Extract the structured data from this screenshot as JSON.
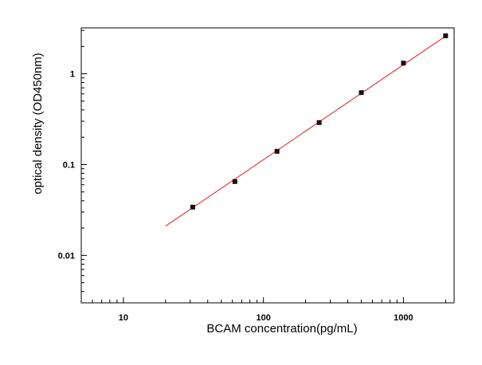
{
  "chart_data": {
    "type": "scatter",
    "title": "",
    "xlabel": "BCAM  concentration(pg/mL)",
    "ylabel": "optical density (OD450nm)",
    "x_scale": "log",
    "y_scale": "log",
    "xlim": [
      5,
      2300
    ],
    "ylim": [
      0.003,
      3.2
    ],
    "x_ticks": [
      {
        "value": 10,
        "label": "10"
      },
      {
        "value": 100,
        "label": "100"
      },
      {
        "value": 1000,
        "label": "1000"
      }
    ],
    "y_ticks": [
      {
        "value": 0.01,
        "label": "0.01"
      },
      {
        "value": 0.1,
        "label": "0.1"
      },
      {
        "value": 1,
        "label": "1"
      }
    ],
    "grid": false,
    "legend": "none",
    "series": [
      {
        "type": "scatter",
        "color": "#1a0a0a",
        "x": [
          31.25,
          62.5,
          125,
          250,
          500,
          1000,
          2000
        ],
        "y": [
          0.034,
          0.065,
          0.14,
          0.29,
          0.62,
          1.31,
          2.62
        ]
      }
    ],
    "fit_line": {
      "color": "#e02020",
      "x": [
        20,
        2000
      ],
      "y": [
        0.021,
        2.6
      ]
    }
  }
}
